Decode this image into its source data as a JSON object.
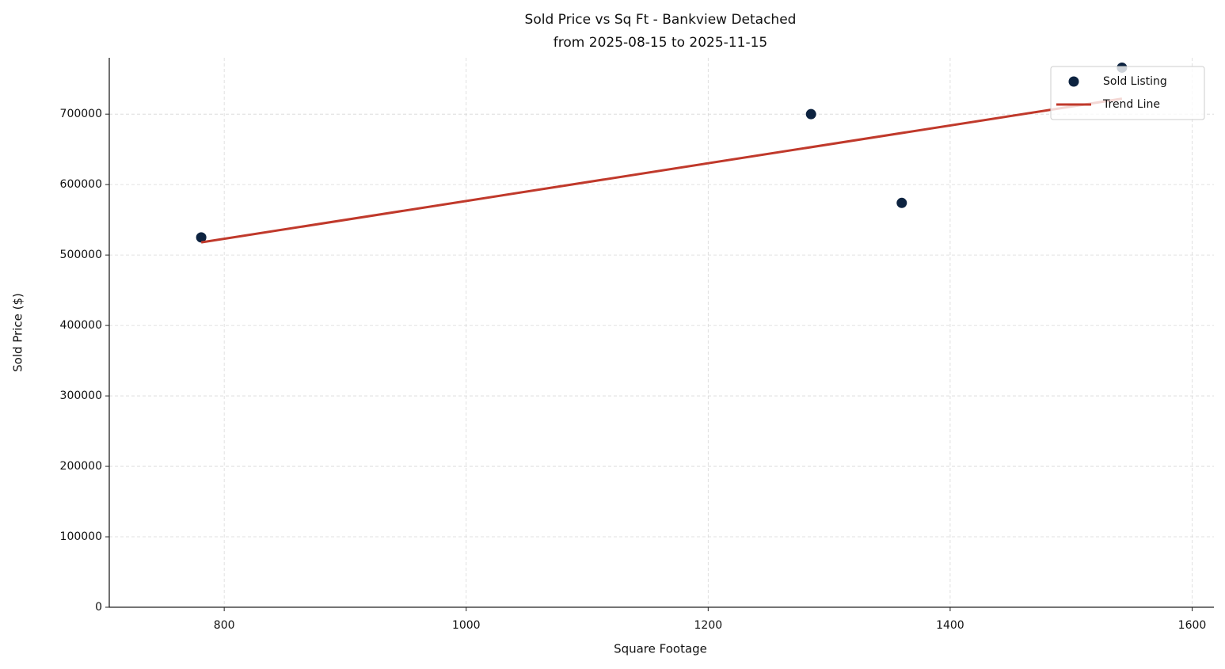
{
  "chart_data": {
    "type": "scatter",
    "title": [
      "Sold Price vs Sq Ft - Bankview Detached",
      "from 2025-08-15 to 2025-11-15"
    ],
    "x_label": "Square Footage",
    "y_label": "Sold Price ($)",
    "series": [
      {
        "name": "Sold Listing",
        "type": "scatter",
        "color": "#0d2340",
        "x": [
          781,
          1285,
          1360,
          1542
        ],
        "values": [
          525000,
          700000,
          574000,
          766000
        ]
      },
      {
        "name": "Trend Line",
        "type": "line",
        "color": "#c0392b",
        "x": [
          781,
          1542
        ],
        "values": [
          518000,
          722000
        ]
      }
    ],
    "xlim": [
      705,
      1618
    ],
    "xticks": [
      800,
      1000,
      1200,
      1400,
      1600
    ],
    "ylim": [
      0,
      780000
    ],
    "yticks": [
      0,
      100000,
      200000,
      300000,
      400000,
      500000,
      600000,
      700000
    ],
    "grid": true,
    "legend": "upper right"
  }
}
